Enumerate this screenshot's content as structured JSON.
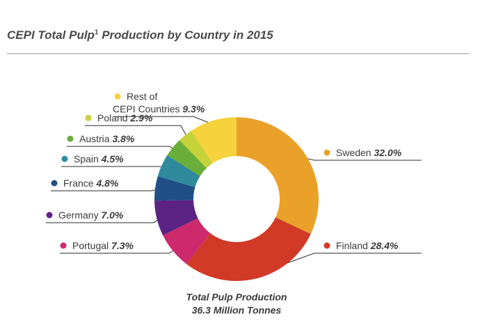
{
  "title": {
    "main": "CEPI Total Pulp",
    "superscript": "1",
    "rest": " Production by Country in 2015"
  },
  "chart_data": {
    "type": "pie",
    "subtype": "donut",
    "title": "CEPI Total Pulp¹ Production by Country in 2015",
    "center_label": [
      "Total Pulp Production",
      "36.3 Million Tonnes"
    ],
    "slices": [
      {
        "label": "Sweden",
        "pct": 32.0,
        "pct_text": "32.0%",
        "color": "#eaa12a"
      },
      {
        "label": "Finland",
        "pct": 28.4,
        "pct_text": "28.4%",
        "color": "#d03a27"
      },
      {
        "label": "Portugal",
        "pct": 7.3,
        "pct_text": "7.3%",
        "color": "#cc2a6d"
      },
      {
        "label": "Germany",
        "pct": 7.0,
        "pct_text": "7.0%",
        "color": "#5b2383"
      },
      {
        "label": "France",
        "pct": 4.8,
        "pct_text": "4.8%",
        "color": "#1f4f85"
      },
      {
        "label": "Spain",
        "pct": 4.5,
        "pct_text": "4.5%",
        "color": "#2f8a9c"
      },
      {
        "label": "Austria",
        "pct": 3.8,
        "pct_text": "3.8%",
        "color": "#6aae3a"
      },
      {
        "label": "Poland",
        "pct": 2.9,
        "pct_text": "2.9%",
        "color": "#c6d23a"
      },
      {
        "label": [
          "Rest of",
          "CEPI Countries"
        ],
        "pct": 9.3,
        "pct_text": "9.3%",
        "color": "#f6d33c"
      }
    ]
  }
}
